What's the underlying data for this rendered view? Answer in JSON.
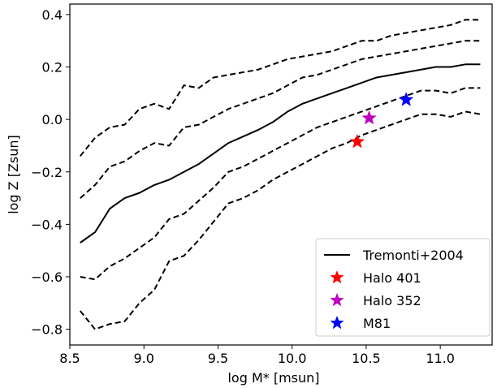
{
  "chart_data": {
    "type": "line",
    "title": "",
    "xlabel": "log M* [msun]",
    "ylabel": "log Z [Zsun]",
    "xlim": [
      8.5,
      11.35
    ],
    "ylim": [
      -0.86,
      0.44
    ],
    "xticks": [
      8.5,
      9.0,
      9.5,
      10.0,
      10.5,
      11.0
    ],
    "xtick_labels": [
      "8.5",
      "9.0",
      "9.5",
      "10.0",
      "10.5",
      "11.0"
    ],
    "yticks": [
      -0.8,
      -0.6,
      -0.4,
      -0.2,
      0.0,
      0.2,
      0.4
    ],
    "ytick_labels": [
      "−0.8",
      "−0.6",
      "−0.4",
      "−0.2",
      "0.0",
      "0.2",
      "0.4"
    ],
    "grid": false,
    "legend_position": "bottom-right",
    "x": [
      8.57,
      8.67,
      8.77,
      8.87,
      8.97,
      9.07,
      9.17,
      9.27,
      9.37,
      9.47,
      9.57,
      9.67,
      9.77,
      9.87,
      9.97,
      10.07,
      10.17,
      10.27,
      10.37,
      10.47,
      10.57,
      10.67,
      10.77,
      10.87,
      10.97,
      11.07,
      11.17,
      11.27
    ],
    "series": [
      {
        "name": "Tremonti+2004",
        "style": "solid",
        "color": "#000000",
        "values": [
          -0.47,
          -0.43,
          -0.34,
          -0.3,
          -0.28,
          -0.25,
          -0.23,
          -0.2,
          -0.17,
          -0.13,
          -0.09,
          -0.065,
          -0.04,
          -0.01,
          0.03,
          0.06,
          0.08,
          0.1,
          0.12,
          0.14,
          0.16,
          0.17,
          0.18,
          0.19,
          0.2,
          0.2,
          0.21,
          0.21
        ]
      },
      {
        "style": "dashed",
        "color": "#000000",
        "values": [
          -0.14,
          -0.07,
          -0.03,
          -0.02,
          0.04,
          0.06,
          0.04,
          0.13,
          0.12,
          0.16,
          0.17,
          0.18,
          0.19,
          0.21,
          0.23,
          0.24,
          0.25,
          0.26,
          0.28,
          0.3,
          0.3,
          0.32,
          0.33,
          0.34,
          0.35,
          0.36,
          0.38,
          0.38
        ]
      },
      {
        "style": "dashed",
        "color": "#000000",
        "values": [
          -0.3,
          -0.25,
          -0.18,
          -0.16,
          -0.12,
          -0.09,
          -0.1,
          -0.03,
          -0.02,
          0.01,
          0.04,
          0.06,
          0.08,
          0.1,
          0.13,
          0.16,
          0.17,
          0.19,
          0.21,
          0.23,
          0.24,
          0.25,
          0.26,
          0.27,
          0.28,
          0.29,
          0.3,
          0.3
        ]
      },
      {
        "style": "dashed",
        "color": "#000000",
        "values": [
          -0.6,
          -0.61,
          -0.56,
          -0.53,
          -0.49,
          -0.45,
          -0.38,
          -0.36,
          -0.31,
          -0.26,
          -0.2,
          -0.18,
          -0.15,
          -0.12,
          -0.09,
          -0.06,
          -0.03,
          -0.01,
          0.01,
          0.03,
          0.05,
          0.07,
          0.09,
          0.11,
          0.11,
          0.1,
          0.12,
          0.12
        ]
      },
      {
        "style": "dashed",
        "color": "#000000",
        "values": [
          -0.73,
          -0.8,
          -0.78,
          -0.77,
          -0.7,
          -0.65,
          -0.54,
          -0.52,
          -0.46,
          -0.39,
          -0.32,
          -0.3,
          -0.27,
          -0.23,
          -0.2,
          -0.17,
          -0.14,
          -0.11,
          -0.09,
          -0.06,
          -0.04,
          -0.02,
          0.0,
          0.02,
          0.02,
          0.01,
          0.03,
          0.02
        ]
      }
    ],
    "points": [
      {
        "name": "Halo 401",
        "x": 10.44,
        "y": -0.085,
        "color": "#ff0000",
        "marker": "star"
      },
      {
        "name": "Halo 352",
        "x": 10.52,
        "y": 0.005,
        "color": "#bf00bf",
        "marker": "star"
      },
      {
        "name": "M81",
        "x": 10.77,
        "y": 0.075,
        "color": "#0000ff",
        "marker": "star"
      }
    ]
  }
}
